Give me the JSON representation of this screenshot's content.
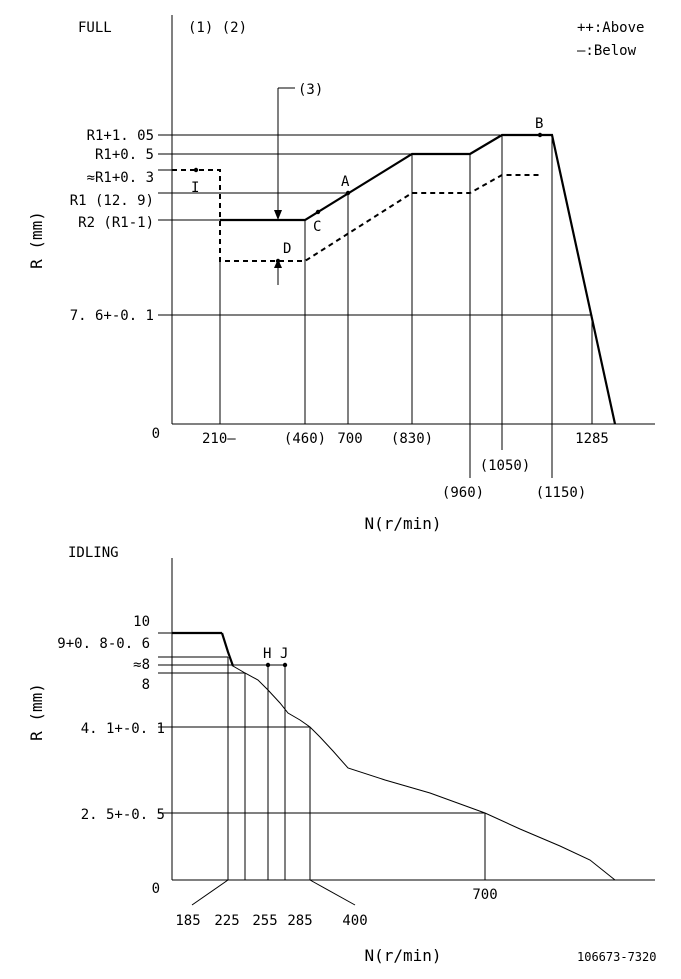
{
  "legend": {
    "above": "++:Above",
    "below": "—:Below"
  },
  "footer_code": "106673-7320",
  "full": {
    "title": "FULL",
    "annot_12": "(1) (2)",
    "annot_3": "(3)",
    "ylabel": "R (mm)",
    "xlabel": "N(r/min)",
    "ylabels": {
      "r1_105": "R1+1. 05",
      "r1_05": "R1+0. 5",
      "r1_03": "≈R1+0. 3",
      "r1": "R1 (12. 9)",
      "r2": "R2 (R1-1)",
      "v76": "7. 6+-0. 1",
      "zero": "0"
    },
    "xlabels": {
      "x210": "210—",
      "x460": "(460)",
      "x700": "700",
      "x830": "(830)",
      "x960": "(960)",
      "x1050": "(1050)",
      "x1150": "(1150)",
      "x1285": "1285"
    },
    "points": {
      "A": "A",
      "B": "B",
      "C": "C",
      "D": "D",
      "I": "I"
    }
  },
  "idling": {
    "title": "IDLING",
    "ylabel": "R (mm)",
    "xlabel": "N(r/min)",
    "ylabels": {
      "y10": "10",
      "y9": "9+0. 8-0. 6",
      "y8a": "≈8",
      "y8": "8",
      "y41": "4. 1+-0. 1",
      "y25": "2. 5+-0. 5",
      "zero": "0"
    },
    "xlabels": {
      "x185": "185",
      "x225": "225",
      "x255": "255",
      "x285": "285",
      "x400": "400",
      "x700": "700"
    },
    "points": {
      "H": "H",
      "J": "J"
    }
  }
}
